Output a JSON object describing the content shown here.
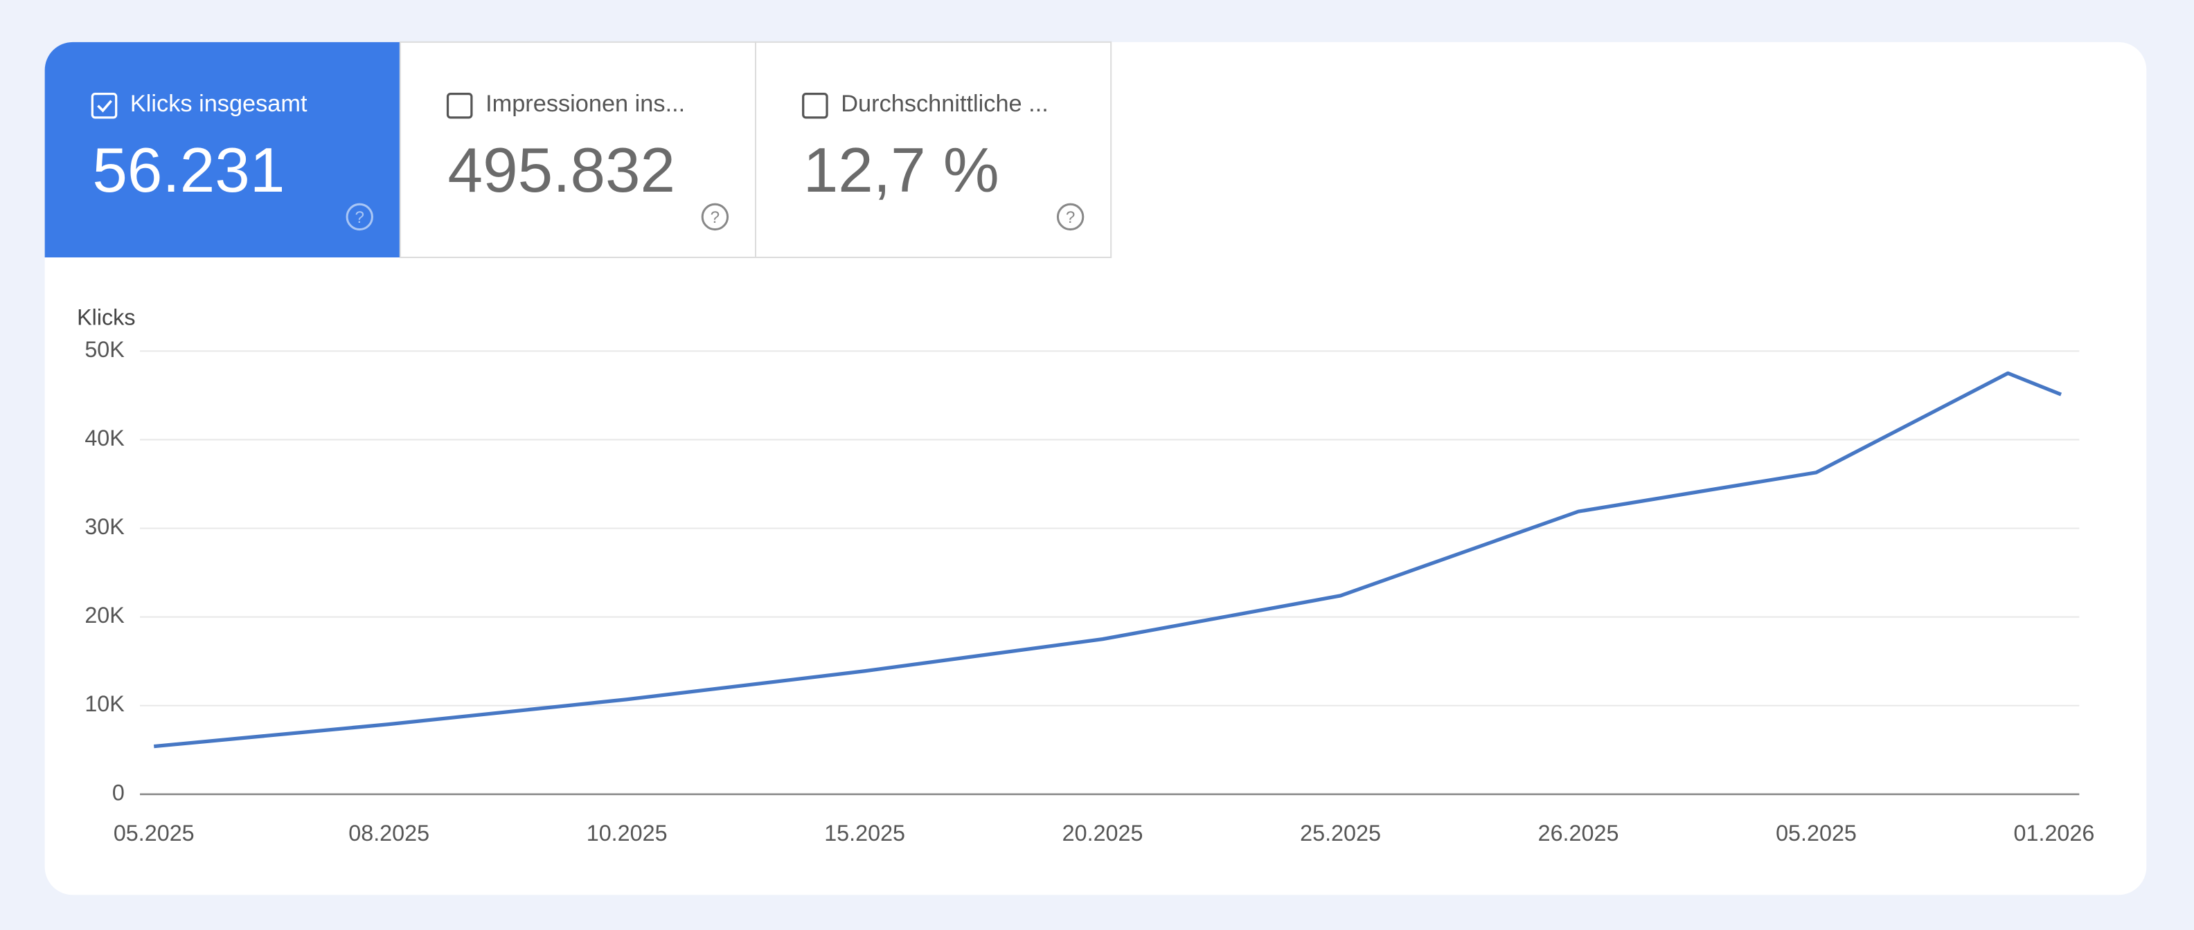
{
  "cards": [
    {
      "label": "Klicks insgesamt",
      "value": "56.231",
      "selected": true
    },
    {
      "label": "Impressionen ins...",
      "value": "495.832",
      "selected": false
    },
    {
      "label": "Durchschnittliche ...",
      "value": "12,7 %",
      "selected": false
    }
  ],
  "chart_data": {
    "type": "line",
    "y_label": "Klicks",
    "categories": [
      "05.2025",
      "08.2025",
      "10.2025",
      "15.2025",
      "20.2025",
      "25.2025",
      "26.2025",
      "05.2025",
      null,
      "01.2026"
    ],
    "values": [
      5400,
      7900,
      10700,
      13900,
      17500,
      22400,
      31900,
      36300,
      47500,
      45100
    ],
    "color": "#4677c4",
    "ylim": [
      0,
      50000
    ],
    "yticks": [
      0,
      {
        "value": 10000,
        "label": "10K"
      },
      {
        "value": 20000,
        "label": "20K"
      },
      {
        "value": 30000,
        "label": "30K"
      },
      {
        "value": 40000,
        "label": "40K"
      },
      {
        "value": 50000,
        "label": "50K"
      }
    ],
    "grid": true
  }
}
